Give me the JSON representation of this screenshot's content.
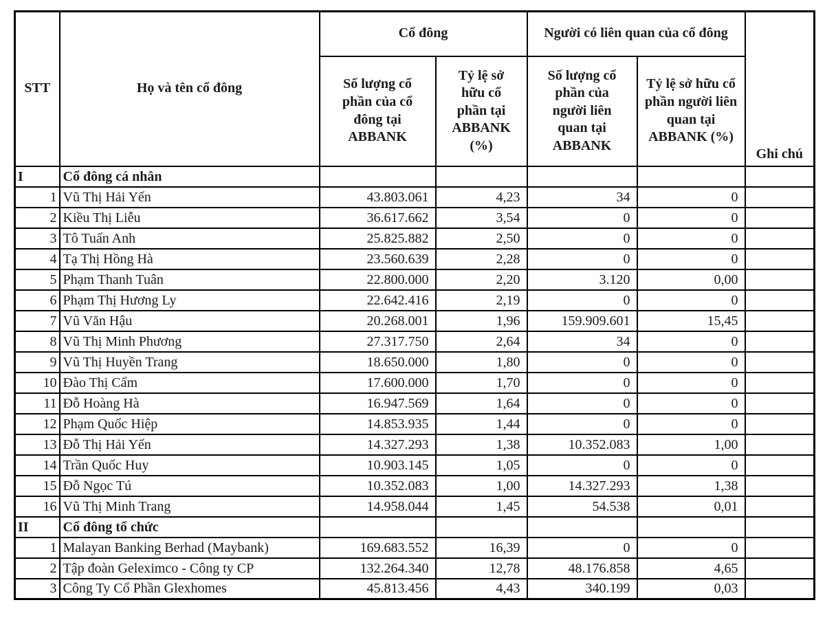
{
  "page": {
    "background": "#ffffff",
    "text_color": "#1b1b1b",
    "border_color": "#000000"
  },
  "table": {
    "headers": {
      "stt": "STT",
      "name": "Họ và tên cổ đông",
      "group_shareholder": "Cổ đông",
      "group_related": "Người có liên quan của cổ đông",
      "shares": "Số lượng cổ phần của cổ đông tại ABBANK",
      "ratio": "Tỷ lệ sở hữu cổ phần tại ABBANK (%)",
      "related_shares": "Số lượng cổ phần của người liên quan tại ABBANK",
      "related_ratio": "Tỷ lệ sở hữu cổ phần người liên quan tại ABBANK (%)",
      "note": "Ghi chú"
    },
    "sections": [
      {
        "id": "I",
        "title": "Cổ đông cá nhân",
        "rows": [
          {
            "stt": "1",
            "name": "Vũ Thị Hải Yến",
            "shares": "43.803.061",
            "ratio": "4,23",
            "rel_shares": "34",
            "rel_ratio": "0",
            "note": ""
          },
          {
            "stt": "2",
            "name": "Kiều Thị Liễu",
            "shares": "36.617.662",
            "ratio": "3,54",
            "rel_shares": "0",
            "rel_ratio": "0",
            "note": ""
          },
          {
            "stt": "3",
            "name": "Tô Tuấn Anh",
            "shares": "25.825.882",
            "ratio": "2,50",
            "rel_shares": "0",
            "rel_ratio": "0",
            "note": ""
          },
          {
            "stt": "4",
            "name": "Tạ Thị Hồng Hà",
            "shares": "23.560.639",
            "ratio": "2,28",
            "rel_shares": "0",
            "rel_ratio": "0",
            "note": ""
          },
          {
            "stt": "5",
            "name": "Phạm Thanh Tuân",
            "shares": "22.800.000",
            "ratio": "2,20",
            "rel_shares": "3.120",
            "rel_ratio": "0,00",
            "note": ""
          },
          {
            "stt": "6",
            "name": "Phạm Thị Hương Ly",
            "shares": "22.642.416",
            "ratio": "2,19",
            "rel_shares": "0",
            "rel_ratio": "0",
            "note": ""
          },
          {
            "stt": "7",
            "name": "Vũ Văn Hậu",
            "shares": "20.268.001",
            "ratio": "1,96",
            "rel_shares": "159.909.601",
            "rel_ratio": "15,45",
            "note": ""
          },
          {
            "stt": "8",
            "name": "Vũ Thị Minh Phương",
            "shares": "27.317.750",
            "ratio": "2,64",
            "rel_shares": "34",
            "rel_ratio": "0",
            "note": ""
          },
          {
            "stt": "9",
            "name": "Vũ Thị Huyền Trang",
            "shares": "18.650.000",
            "ratio": "1,80",
            "rel_shares": "0",
            "rel_ratio": "0",
            "note": ""
          },
          {
            "stt": "10",
            "name": "Đào Thị Cẩm",
            "shares": "17.600.000",
            "ratio": "1,70",
            "rel_shares": "0",
            "rel_ratio": "0",
            "note": ""
          },
          {
            "stt": "11",
            "name": "Đỗ Hoàng Hà",
            "shares": "16.947.569",
            "ratio": "1,64",
            "rel_shares": "0",
            "rel_ratio": "0",
            "note": ""
          },
          {
            "stt": "12",
            "name": "Phạm Quốc Hiệp",
            "shares": "14.853.935",
            "ratio": "1,44",
            "rel_shares": "0",
            "rel_ratio": "0",
            "note": ""
          },
          {
            "stt": "13",
            "name": "Đỗ Thị Hải Yến",
            "shares": "14.327.293",
            "ratio": "1,38",
            "rel_shares": "10.352.083",
            "rel_ratio": "1,00",
            "note": ""
          },
          {
            "stt": "14",
            "name": "Trần Quốc Huy",
            "shares": "10.903.145",
            "ratio": "1,05",
            "rel_shares": "0",
            "rel_ratio": "0",
            "note": ""
          },
          {
            "stt": "15",
            "name": "Đỗ Ngọc Tú",
            "shares": "10.352.083",
            "ratio": "1,00",
            "rel_shares": "14.327.293",
            "rel_ratio": "1,38",
            "note": ""
          },
          {
            "stt": "16",
            "name": "Vũ Thị Minh Trang",
            "shares": "14.958.044",
            "ratio": "1,45",
            "rel_shares": "54.538",
            "rel_ratio": "0,01",
            "note": ""
          }
        ]
      },
      {
        "id": "II",
        "title": "Cổ đông tổ chức",
        "rows": [
          {
            "stt": "1",
            "name": "Malayan Banking Berhad (Maybank)",
            "shares": "169.683.552",
            "ratio": "16,39",
            "rel_shares": "0",
            "rel_ratio": "0",
            "note": ""
          },
          {
            "stt": "2",
            "name": "Tập đoàn Geleximco - Công ty CP",
            "shares": "132.264.340",
            "ratio": "12,78",
            "rel_shares": "48.176.858",
            "rel_ratio": "4,65",
            "note": ""
          },
          {
            "stt": "3",
            "name": "Công Ty Cổ Phần Glexhomes",
            "shares": "45.813.456",
            "ratio": "4,43",
            "rel_shares": "340.199",
            "rel_ratio": "0,03",
            "note": ""
          }
        ]
      }
    ]
  }
}
